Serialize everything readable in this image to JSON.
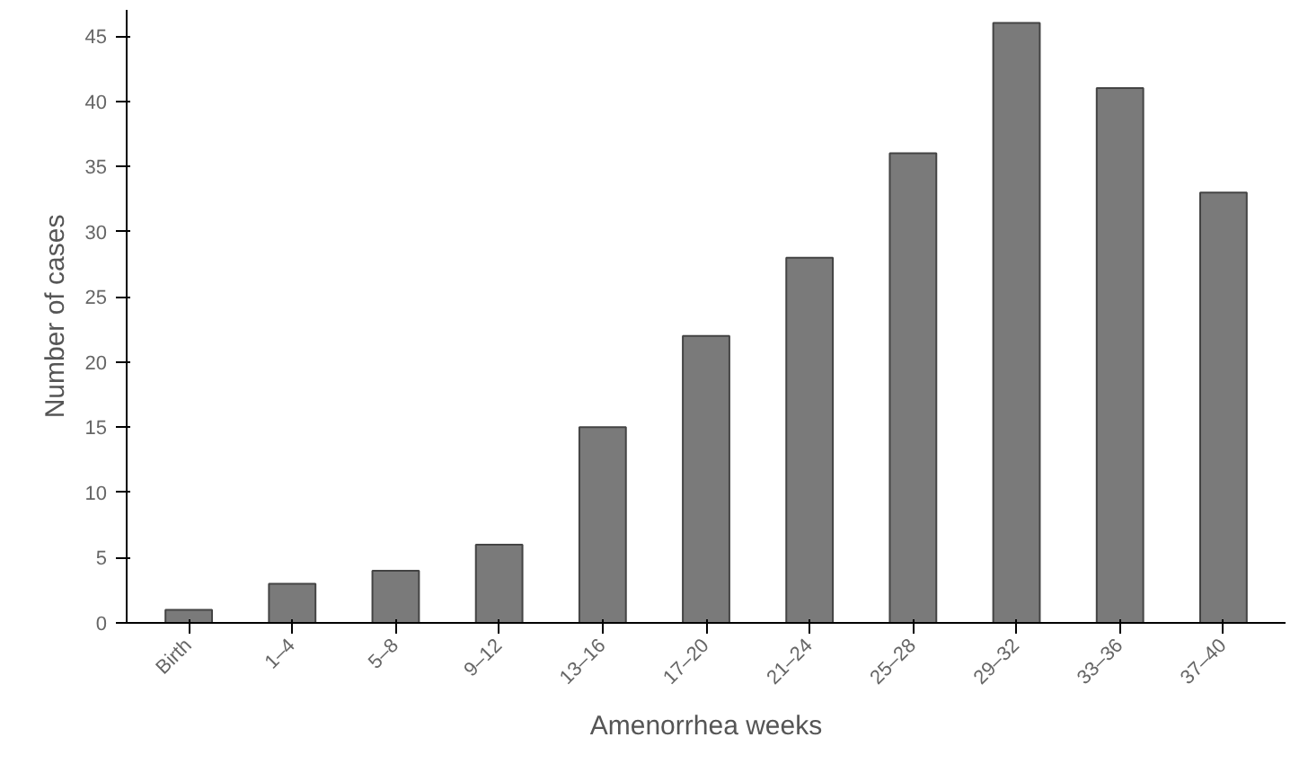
{
  "chart_data": {
    "type": "bar",
    "xlabel": "Amenorrhea weeks",
    "ylabel": "Number of cases",
    "categories": [
      "Birth",
      "1–4",
      "5–8",
      "9–12",
      "13–16",
      "17–20",
      "21–24",
      "25–28",
      "29–32",
      "33–36",
      "37–40"
    ],
    "values": [
      1,
      3,
      4,
      6,
      15,
      22,
      28,
      36,
      46,
      41,
      33
    ],
    "color": "#7a7a7a",
    "ylim": [
      0,
      47
    ],
    "yticks": [
      0,
      5,
      10,
      15,
      20,
      25,
      30,
      35,
      40,
      45
    ],
    "grid": false
  }
}
